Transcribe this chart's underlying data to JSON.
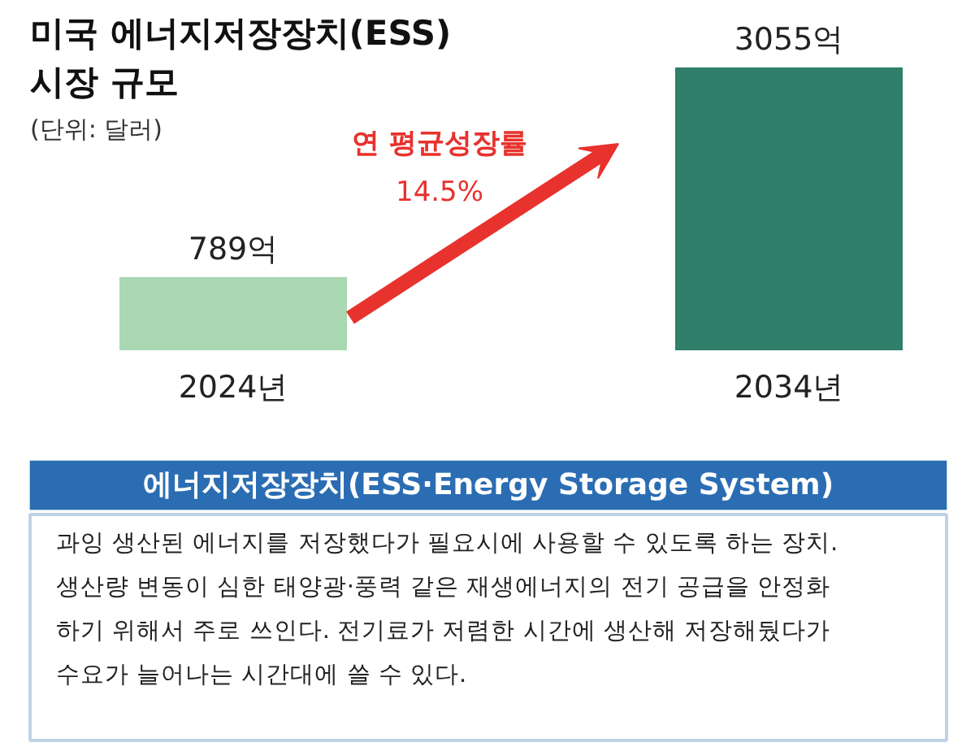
{
  "chart_data": {
    "type": "bar",
    "title": "미국 에너지저장장치(ESS)\n시장 규모",
    "subtitle": "(단위: 달러)",
    "categories": [
      "2024년",
      "2034년"
    ],
    "values": [
      789,
      3055
    ],
    "value_labels": [
      "789억",
      "3055억"
    ],
    "colors": [
      "#a9d8b3",
      "#2f7f6a"
    ],
    "annotations": [
      "연 평균성장률",
      "14.5%",
      "에너지저장장치(ESS·Energy Storage System)",
      "과잉 생산된 에너지를 저장했다가 필요시에 사용할 수 있도록 하는 장치.",
      "생산량 변동이 심한 태양광·풍력 같은 재생에너지의 전기 공급을 안정화",
      "하기 위해서 주로 쓰인다. 전기료가 저렴한 시간에 생산해 저장해뒀다가",
      "수요가 늘어나는 시간대에 쓸 수 있다."
    ]
  }
}
